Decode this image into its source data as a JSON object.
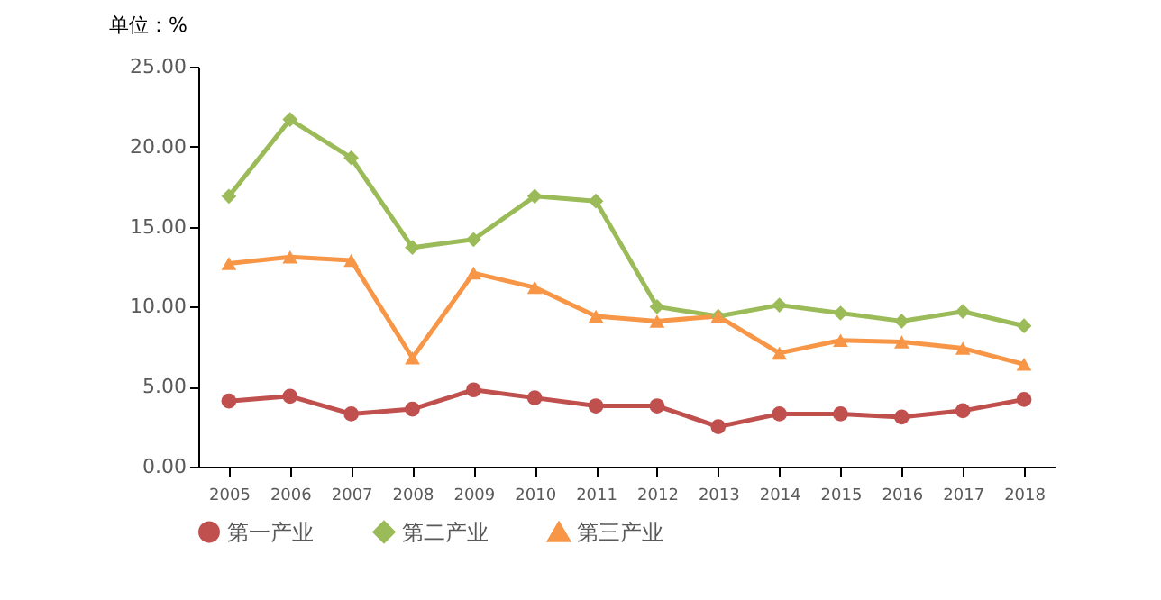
{
  "chart_data": {
    "type": "line",
    "ylabel": "单位：%",
    "categories": [
      "2005",
      "2006",
      "2007",
      "2008",
      "2009",
      "2010",
      "2011",
      "2012",
      "2013",
      "2014",
      "2015",
      "2016",
      "2017",
      "2018"
    ],
    "series": [
      {
        "name": "第一产业",
        "color": "#c0504d",
        "marker": "circle",
        "values": [
          4.1,
          4.4,
          3.3,
          3.6,
          4.8,
          4.3,
          3.8,
          3.8,
          2.5,
          3.3,
          3.3,
          3.1,
          3.5,
          4.2
        ]
      },
      {
        "name": "第二产业",
        "color": "#9bbb59",
        "marker": "diamond",
        "values": [
          16.9,
          21.7,
          19.3,
          13.7,
          14.2,
          16.9,
          16.6,
          10.0,
          9.4,
          10.1,
          9.6,
          9.1,
          9.7,
          8.8
        ]
      },
      {
        "name": "第三产业",
        "color": "#f79646",
        "marker": "triangle",
        "values": [
          12.7,
          13.1,
          12.9,
          6.8,
          12.1,
          11.2,
          9.4,
          9.1,
          9.4,
          7.1,
          7.9,
          7.8,
          7.4,
          6.4
        ]
      }
    ],
    "ylim": [
      0,
      25
    ],
    "yticks": [
      {
        "value": 0,
        "label": "0.00"
      },
      {
        "value": 5,
        "label": "5.00"
      },
      {
        "value": 10,
        "label": "10.00"
      },
      {
        "value": 15,
        "label": "15.00"
      },
      {
        "value": 20,
        "label": "20.00"
      },
      {
        "value": 25,
        "label": "25.00"
      }
    ],
    "grid": false,
    "legend": "bottom"
  }
}
